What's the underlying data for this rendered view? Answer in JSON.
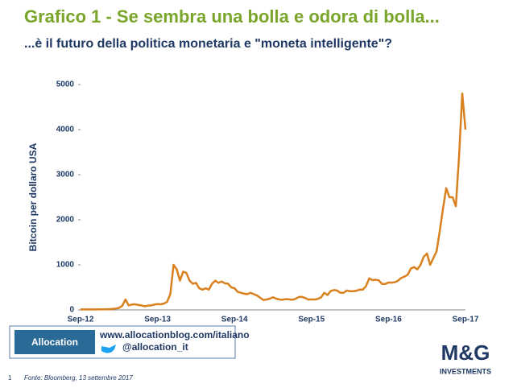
{
  "chart_data": {
    "type": "line",
    "title": "Grafico 1 - Se sembra una bolla e odora di bolla...",
    "subtitle": "...è il futuro della politica monetaria e \"moneta intelligente\"?",
    "y_label": "Bitcoin per dollaro USA",
    "categories": [
      "Sep-12",
      null,
      null,
      null,
      null,
      null,
      null,
      null,
      null,
      null,
      null,
      null,
      null,
      null,
      null,
      null,
      null,
      null,
      null,
      null,
      null,
      null,
      null,
      null,
      "Sep-13",
      null,
      null,
      null,
      null,
      null,
      null,
      null,
      null,
      null,
      null,
      null,
      null,
      null,
      null,
      null,
      null,
      null,
      null,
      null,
      null,
      null,
      null,
      null,
      "Sep-14",
      null,
      null,
      null,
      null,
      null,
      null,
      null,
      null,
      null,
      null,
      null,
      null,
      null,
      null,
      null,
      null,
      null,
      null,
      null,
      null,
      null,
      null,
      null,
      "Sep-15",
      null,
      null,
      null,
      null,
      null,
      null,
      null,
      null,
      null,
      null,
      null,
      null,
      null,
      null,
      null,
      null,
      null,
      null,
      null,
      null,
      null,
      null,
      null,
      "Sep-16",
      null,
      null,
      null,
      null,
      null,
      null,
      null,
      null,
      null,
      null,
      null,
      null,
      null,
      null,
      null,
      null,
      null,
      null,
      null,
      null,
      null,
      null,
      null,
      "Sep-17"
    ],
    "series": [
      {
        "color": "#d9801f",
        "values": [
          12,
          12,
          12,
          12,
          11,
          12,
          13,
          13,
          14,
          17,
          22,
          30,
          45,
          90,
          230,
          100,
          120,
          125,
          110,
          100,
          80,
          95,
          100,
          120,
          130,
          125,
          140,
          180,
          350,
          1000,
          900,
          650,
          850,
          820,
          650,
          580,
          600,
          480,
          450,
          480,
          450,
          580,
          650,
          600,
          630,
          590,
          580,
          500,
          480,
          400,
          380,
          360,
          350,
          380,
          350,
          320,
          270,
          220,
          230,
          250,
          280,
          250,
          230,
          225,
          240,
          235,
          225,
          245,
          285,
          290,
          265,
          230,
          235,
          230,
          245,
          280,
          380,
          330,
          420,
          440,
          430,
          380,
          380,
          430,
          415,
          415,
          425,
          450,
          450,
          530,
          700,
          660,
          670,
          655,
          575,
          575,
          610,
          605,
          615,
          650,
          710,
          740,
          780,
          920,
          950,
          900,
          1000,
          1180,
          1250,
          1000,
          1150,
          1300,
          1750,
          2250,
          2700,
          2500,
          2500,
          2300,
          3400,
          4800,
          4000
        ]
      }
    ],
    "ylim": [
      0,
      5000
    ],
    "yticks": [
      0,
      1000,
      2000,
      3000,
      4000,
      5000
    ],
    "grid": false
  },
  "footer": {
    "site": "www.allocationblog.com/italiano",
    "twitter": "@allocation_it",
    "logo": "Allocation",
    "brand": "M&G",
    "brand_sub": "INVESTMENTS",
    "page": "1",
    "source": "Fonte: Bloomberg, 13 settembre 2017"
  }
}
